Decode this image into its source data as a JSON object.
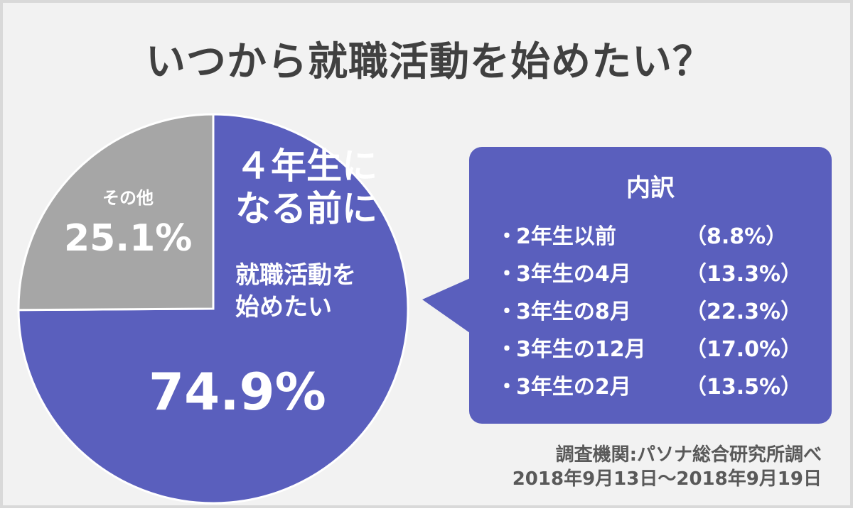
{
  "title": "いつから就職活動を始めたい？",
  "chart_data": {
    "type": "pie",
    "slices": [
      {
        "label": "4年生になる前に就職活動を始めたい",
        "value": 74.9,
        "value_label": "74.9%",
        "color": "#5a5fbd"
      },
      {
        "label": "その他",
        "value": 25.1,
        "value_label": "25.1%",
        "color": "#a6a6a6"
      }
    ],
    "main_label_head": [
      "４年生に",
      "なる前に"
    ],
    "main_label_sub": [
      "就職活動を",
      "始めたい"
    ],
    "other_label": "その他"
  },
  "breakdown": {
    "title": "内訳",
    "bullet": "・",
    "items": [
      {
        "label": "2年生以前",
        "value": "（8.8%）"
      },
      {
        "label": "3年生の4月",
        "value": "（13.3%）"
      },
      {
        "label": "3年生の8月",
        "value": "（22.3%）"
      },
      {
        "label": "3年生の12月",
        "value": "（17.0%）"
      },
      {
        "label": "3年生の2月",
        "value": "（13.5%）"
      }
    ]
  },
  "source": {
    "line1": "調査機関:パソナ総合研究所調べ",
    "line2": "2018年9月13日～2018年9月19日"
  }
}
